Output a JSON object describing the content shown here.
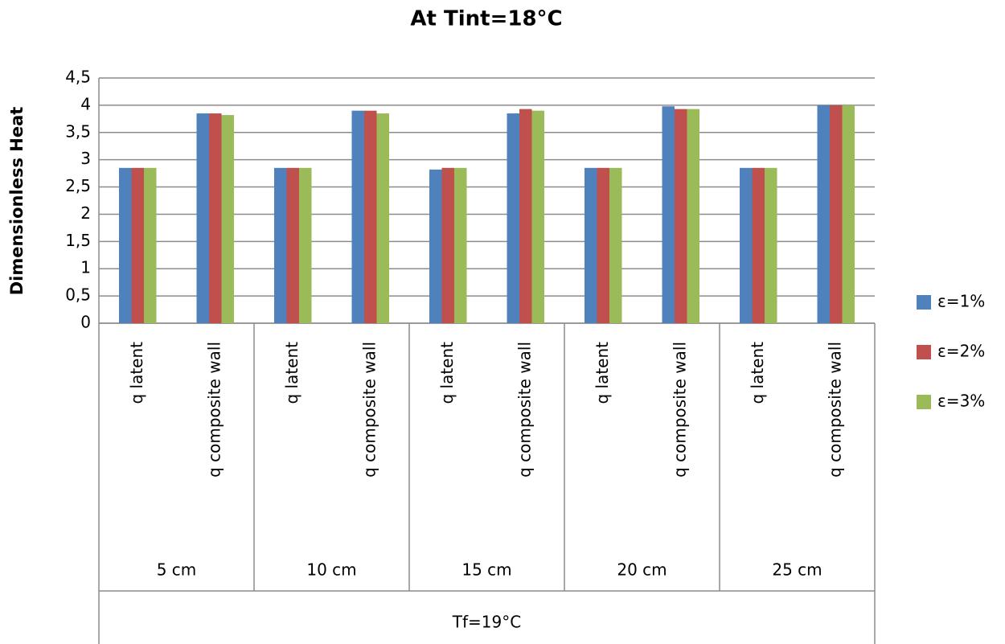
{
  "chart_data": {
    "type": "bar",
    "title": "At Tint=18°C",
    "y_label": "Dimensionless Heat",
    "categories": [
      "q latent",
      "q composite wall",
      "q latent",
      "q composite wall",
      "q latent",
      "q composite wall",
      "q latent",
      "q composite wall",
      "q latent",
      "q composite wall"
    ],
    "groups": [
      "5 cm",
      "10 cm",
      "15 cm",
      "20 cm",
      "25 cm"
    ],
    "group_title": "Tf=19°C",
    "series": [
      {
        "name": "ε=1%",
        "color": "#4f81bd",
        "values": [
          2.85,
          3.85,
          2.85,
          3.9,
          2.82,
          3.85,
          2.85,
          3.98,
          2.85,
          4.0
        ]
      },
      {
        "name": "ε=2%",
        "color": "#c0504d",
        "values": [
          2.85,
          3.85,
          2.85,
          3.9,
          2.85,
          3.93,
          2.85,
          3.93,
          2.85,
          4.0
        ]
      },
      {
        "name": "ε=3%",
        "color": "#9bbb59",
        "values": [
          2.85,
          3.82,
          2.85,
          3.85,
          2.85,
          3.9,
          2.85,
          3.93,
          2.85,
          4.0
        ]
      }
    ],
    "ylim": [
      0,
      4.5
    ],
    "yticks": [
      0,
      {
        "value": 0.5,
        "label": "0,5"
      },
      1,
      {
        "value": 1.5,
        "label": "1,5"
      },
      2,
      {
        "value": 2.5,
        "label": "2,5"
      },
      3,
      {
        "value": 3.5,
        "label": "3,5"
      },
      4,
      {
        "value": 4.5,
        "label": "4,5"
      }
    ],
    "grid": true,
    "legend": "right"
  }
}
